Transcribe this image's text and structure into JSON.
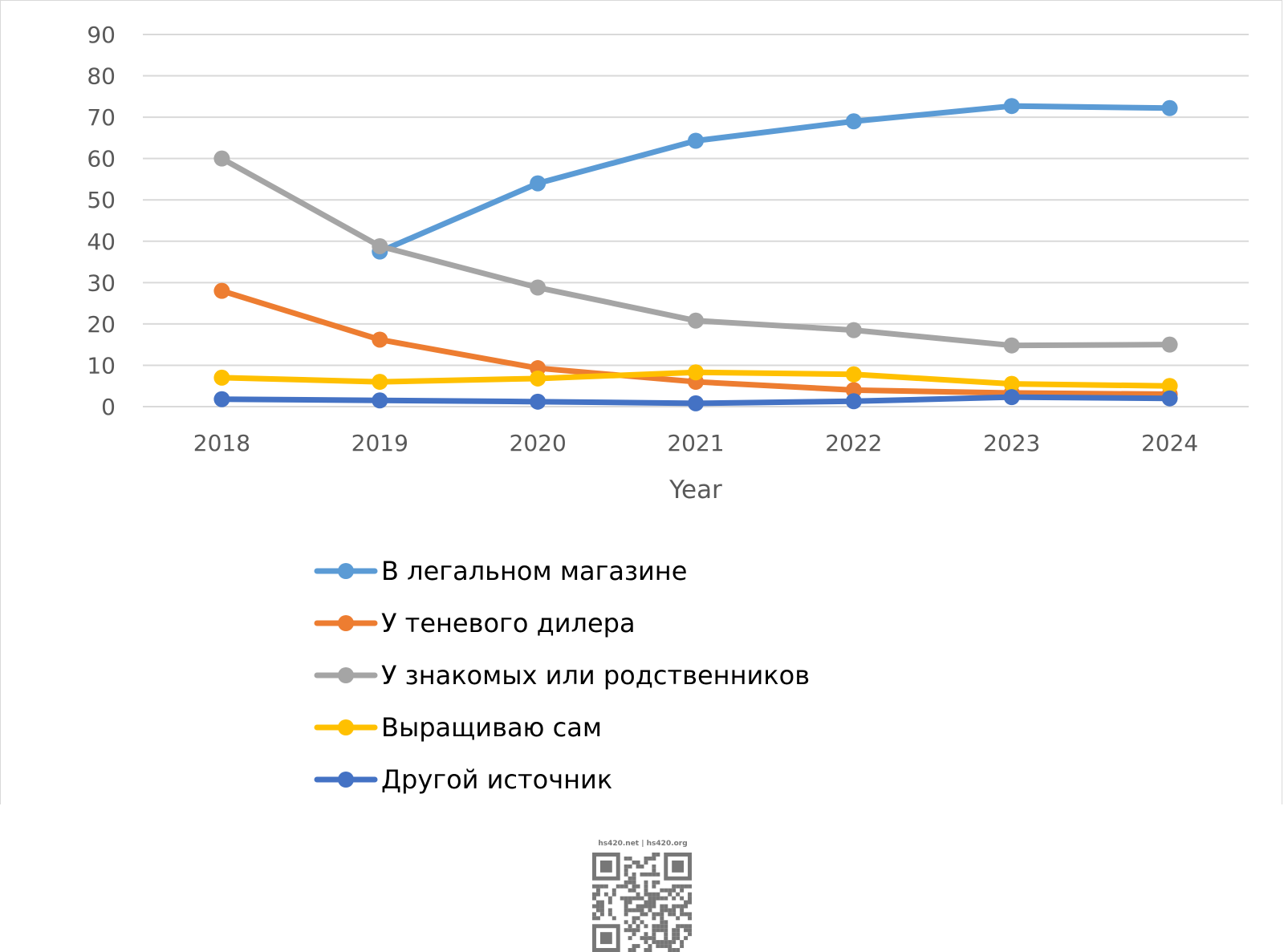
{
  "chart_data": {
    "type": "line",
    "title": "",
    "xlabel": "Year",
    "ylabel": "",
    "x": [
      "2018",
      "2019",
      "2020",
      "2021",
      "2022",
      "2023",
      "2024"
    ],
    "ylim": [
      0,
      90
    ],
    "yticks": [
      0,
      10,
      20,
      30,
      40,
      50,
      60,
      70,
      80,
      90
    ],
    "grid": true,
    "legend_position": "bottom",
    "series": [
      {
        "name": "В легальном магазине",
        "color": "#5b9bd5",
        "values": [
          null,
          37.5,
          54,
          64.3,
          69,
          72.7,
          72.2
        ]
      },
      {
        "name": "У теневого дилера",
        "color": "#ed7d31",
        "values": [
          28,
          16.2,
          9.3,
          6,
          4,
          3.3,
          3
        ]
      },
      {
        "name": "У знакомых или родственников",
        "color": "#a5a5a5",
        "values": [
          60,
          38.8,
          28.8,
          20.8,
          18.5,
          14.8,
          15
        ]
      },
      {
        "name": "Выращиваю сам",
        "color": "#ffc000",
        "values": [
          7,
          6,
          6.8,
          8.3,
          7.8,
          5.5,
          5
        ]
      },
      {
        "name": "Другой источник",
        "color": "#4472c4",
        "values": [
          1.8,
          1.5,
          1.2,
          0.8,
          1.3,
          2.3,
          2
        ]
      }
    ]
  },
  "watermark": {
    "caption": "hs420.net | hs420.org",
    "icon": "qr-code-icon"
  }
}
